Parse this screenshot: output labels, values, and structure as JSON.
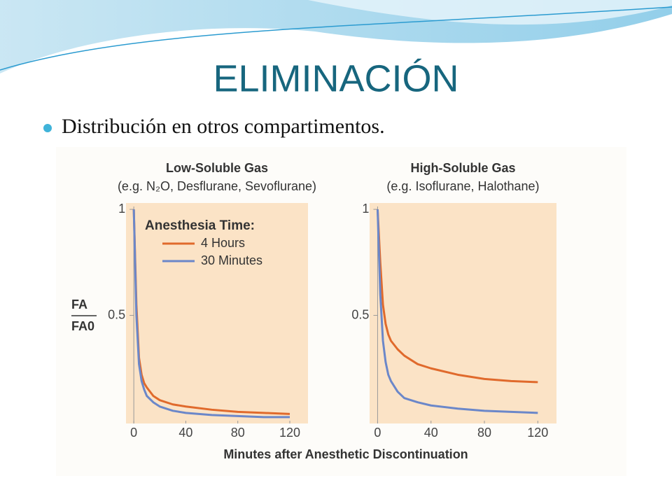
{
  "title": "ELIMINACIÓN",
  "bullet": "Distribución en otros compartimentos.",
  "chart_data": [
    {
      "type": "line",
      "title": "Low-Soluble Gas",
      "subtitle": "(e.g. N₂O, Desflurane, Sevoflurane)",
      "ylabel_numerator": "FA",
      "ylabel_denominator": "FA0",
      "xlabel": "Minutes after Anesthetic Discontinuation",
      "legend_title": "Anesthesia Time:",
      "legend": "upper right",
      "x": [
        0,
        2,
        4,
        6,
        8,
        10,
        15,
        20,
        30,
        40,
        60,
        80,
        100,
        120
      ],
      "series": [
        {
          "name": "4 Hours",
          "color": "#e06a2c",
          "values": [
            1,
            0.55,
            0.3,
            0.22,
            0.18,
            0.16,
            0.12,
            0.1,
            0.08,
            0.07,
            0.055,
            0.045,
            0.04,
            0.035
          ]
        },
        {
          "name": "30 Minutes",
          "color": "#6b87c9",
          "values": [
            1,
            0.5,
            0.27,
            0.19,
            0.15,
            0.12,
            0.09,
            0.07,
            0.05,
            0.04,
            0.03,
            0.025,
            0.02,
            0.02
          ]
        }
      ],
      "xlim": [
        -6,
        134
      ],
      "ylim": [
        -0.01,
        1.03
      ],
      "xticks": [
        0,
        40,
        80,
        120
      ],
      "yticks": [
        0.5,
        1
      ]
    },
    {
      "type": "line",
      "title": "High-Soluble Gas",
      "subtitle": "(e.g. Isoflurane, Halothane)",
      "x": [
        0,
        2,
        4,
        6,
        8,
        10,
        15,
        20,
        30,
        40,
        60,
        80,
        100,
        120
      ],
      "series": [
        {
          "color": "#e06a2c",
          "values": [
            1,
            0.75,
            0.55,
            0.46,
            0.41,
            0.38,
            0.34,
            0.31,
            0.27,
            0.25,
            0.22,
            0.2,
            0.19,
            0.185
          ]
        },
        {
          "color": "#6b87c9",
          "values": [
            1,
            0.6,
            0.38,
            0.28,
            0.22,
            0.19,
            0.14,
            0.11,
            0.09,
            0.075,
            0.06,
            0.05,
            0.045,
            0.04
          ]
        }
      ],
      "xlim": [
        -6,
        134
      ],
      "ylim": [
        -0.01,
        1.03
      ],
      "xticks": [
        0,
        40,
        80,
        120
      ],
      "yticks": [
        0.5,
        1
      ]
    }
  ]
}
